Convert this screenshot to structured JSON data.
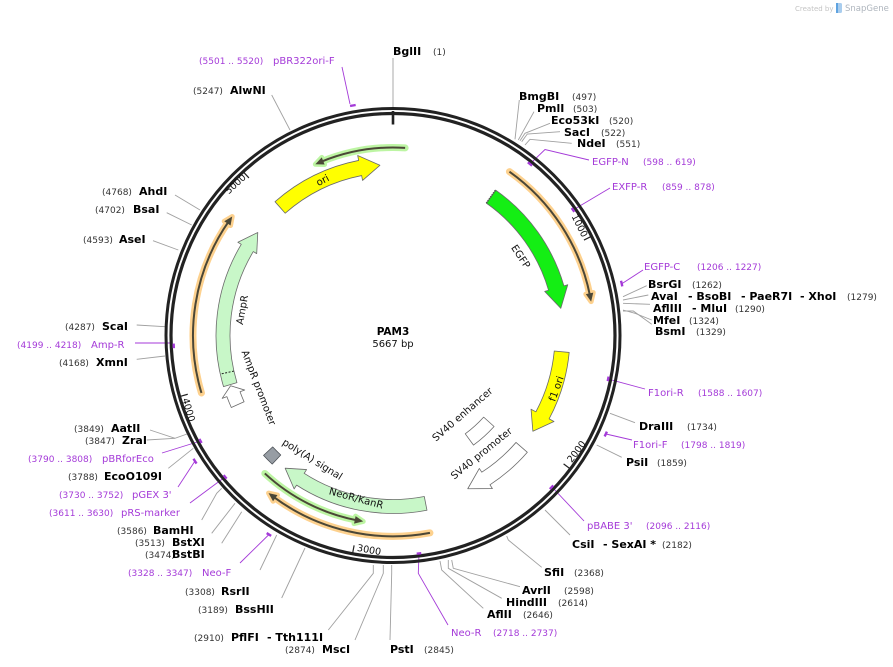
{
  "watermark": {
    "prefix": "Created by",
    "brand": "SnapGene",
    "icon": "snapgene-logo-icon"
  },
  "plasmid": {
    "name": "PAM3",
    "length": "5667 bp"
  },
  "colors": {
    "ring": "#222222",
    "primer": "#a43ad8",
    "enzyme_leader": "#a0a0a0",
    "orf_orange_halo": "#fdd18e",
    "orf_green_halo": "#bdf5a3"
  },
  "features": [
    {
      "name": "ori",
      "color": "#ffff00",
      "direction": "forward"
    },
    {
      "name": "EGFP",
      "color": "#14ee14",
      "direction": "forward"
    },
    {
      "name": "f1 ori",
      "color": "#ffff00",
      "direction": "forward"
    },
    {
      "name": "SV40 promoter",
      "color": "#ffffff",
      "direction": "forward"
    },
    {
      "name": "SV40 enhancer",
      "color": "#ffffff",
      "direction": "none"
    },
    {
      "name": "NeoR/KanR",
      "color": "#c8f7c8",
      "direction": "forward"
    },
    {
      "name": "poly(A) signal",
      "color": "#979da4",
      "direction": "none"
    },
    {
      "name": "AmpR promoter",
      "color": "#ffffff",
      "direction": "forward"
    },
    {
      "name": "AmpR",
      "color": "#c8f7c8",
      "direction": "forward"
    }
  ],
  "orfs": [
    {
      "halo": "#bdf5a3",
      "direction": "reverse"
    },
    {
      "halo": "#fdd18e",
      "direction": "forward"
    },
    {
      "halo": "#bdf5a3",
      "direction": "reverse"
    },
    {
      "halo": "#fdd18e",
      "direction": "forward"
    },
    {
      "halo": "#fdd18e",
      "direction": "forward"
    }
  ],
  "ticks": [
    "1000",
    "2000",
    "3000",
    "4000",
    "5000"
  ],
  "enzymes": [
    {
      "labels": [
        "BglII"
      ],
      "position": "(1)"
    },
    {
      "labels": [
        "BmgBI"
      ],
      "position": "(497)"
    },
    {
      "labels": [
        "PmlI"
      ],
      "position": "(503)"
    },
    {
      "labels": [
        "Eco53kI"
      ],
      "position": "(520)"
    },
    {
      "labels": [
        "SacI"
      ],
      "position": "(522)"
    },
    {
      "labels": [
        "NdeI"
      ],
      "position": "(551)"
    },
    {
      "labels": [
        "BsrGI"
      ],
      "position": "(1262)"
    },
    {
      "labels": [
        "AvaI",
        "- BsoBI",
        "- PaeR7I",
        "- XhoI"
      ],
      "position": "(1279)"
    },
    {
      "labels": [
        "AflIII",
        "- MluI"
      ],
      "position": "(1290)"
    },
    {
      "labels": [
        "MfeI"
      ],
      "position": "(1324)"
    },
    {
      "labels": [
        "BsmI"
      ],
      "position": "(1329)"
    },
    {
      "labels": [
        "DraIII"
      ],
      "position": "(1734)"
    },
    {
      "labels": [
        "PsiI"
      ],
      "position": "(1859)"
    },
    {
      "labels": [
        "CsiI",
        "- SexAI *"
      ],
      "position": "(2182)"
    },
    {
      "labels": [
        "SfiI"
      ],
      "position": "(2368)"
    },
    {
      "labels": [
        "AvrII"
      ],
      "position": "(2598)"
    },
    {
      "labels": [
        "HindIII"
      ],
      "position": "(2614)"
    },
    {
      "labels": [
        "AflII"
      ],
      "position": "(2646)"
    },
    {
      "labels": [
        "PstI"
      ],
      "position": "(2845)"
    },
    {
      "labels": [
        "MscI"
      ],
      "position": "(2874)"
    },
    {
      "labels": [
        "PflFI",
        "- Tth111I"
      ],
      "position": "(2910)"
    },
    {
      "labels": [
        "BssHII"
      ],
      "position": "(3189)"
    },
    {
      "labels": [
        "RsrII"
      ],
      "position": "(3308)"
    },
    {
      "labels": [
        "BstBI"
      ],
      "position": "(3474)"
    },
    {
      "labels": [
        "BstXI"
      ],
      "position": "(3513)"
    },
    {
      "labels": [
        "BamHI"
      ],
      "position": "(3586)"
    },
    {
      "labels": [
        "EcoO109I"
      ],
      "position": "(3788)"
    },
    {
      "labels": [
        "ZraI"
      ],
      "position": "(3847)"
    },
    {
      "labels": [
        "AatII"
      ],
      "position": "(3849)"
    },
    {
      "labels": [
        "XmnI"
      ],
      "position": "(4168)"
    },
    {
      "labels": [
        "ScaI"
      ],
      "position": "(4287)"
    },
    {
      "labels": [
        "AseI"
      ],
      "position": "(4593)"
    },
    {
      "labels": [
        "BsaI"
      ],
      "position": "(4702)"
    },
    {
      "labels": [
        "AhdI"
      ],
      "position": "(4768)"
    },
    {
      "labels": [
        "AlwNI"
      ],
      "position": "(5247)"
    }
  ],
  "primers": [
    {
      "name": "EGFP-N",
      "range": "(598 .. 619)"
    },
    {
      "name": "EXFP-R",
      "range": "(859 .. 878)"
    },
    {
      "name": "EGFP-C",
      "range": "(1206 .. 1227)"
    },
    {
      "name": "F1ori-R",
      "range": "(1588 .. 1607)"
    },
    {
      "name": "F1ori-F",
      "range": "(1798 .. 1819)"
    },
    {
      "name": "pBABE 3'",
      "range": "(2096 .. 2116)"
    },
    {
      "name": "Neo-R",
      "range": "(2718 .. 2737)"
    },
    {
      "name": "Neo-F",
      "range": "(3328 .. 3347)"
    },
    {
      "name": "pRS-marker",
      "range": "(3611 .. 3630)"
    },
    {
      "name": "pGEX 3'",
      "range": "(3730 .. 3752)"
    },
    {
      "name": "pBRforEco",
      "range": "(3790 .. 3808)"
    },
    {
      "name": "Amp-R",
      "range": "(4199 .. 4218)"
    },
    {
      "name": "pBR322ori-F",
      "range": "(5501 .. 5520)"
    }
  ]
}
